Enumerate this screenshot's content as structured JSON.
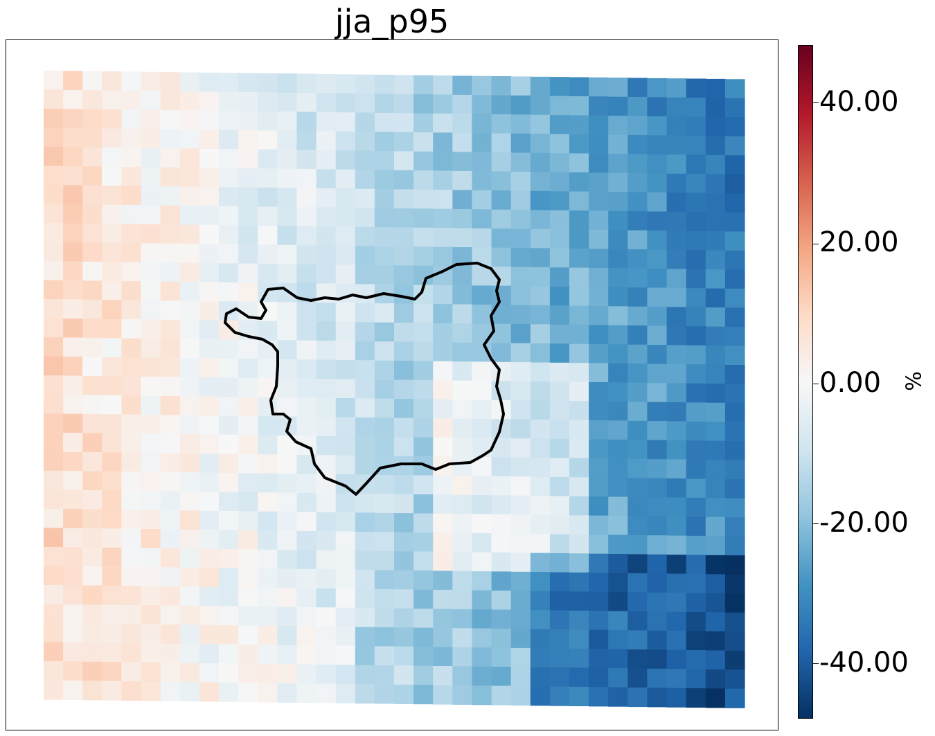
{
  "title": "jja_p95",
  "colorbar": {
    "unit": "%",
    "ticks": [
      "40.00",
      "20.00",
      "0.00",
      "-20.00",
      "-40.00"
    ],
    "tick_values": [
      40,
      20,
      0,
      -20,
      -40
    ],
    "vmin": -47,
    "vmax": 47,
    "colormap": "RdBu_r",
    "stops": [
      "#053061",
      "#2166ac",
      "#4393c3",
      "#92c5de",
      "#d1e5f0",
      "#f7f7f7",
      "#fddbc7",
      "#f4a582",
      "#d6604d",
      "#b2182b",
      "#67001f"
    ]
  },
  "map": {
    "grid_cols": 36,
    "grid_rows": 33,
    "outline_color": "#000000",
    "value_field": "percent change"
  }
}
